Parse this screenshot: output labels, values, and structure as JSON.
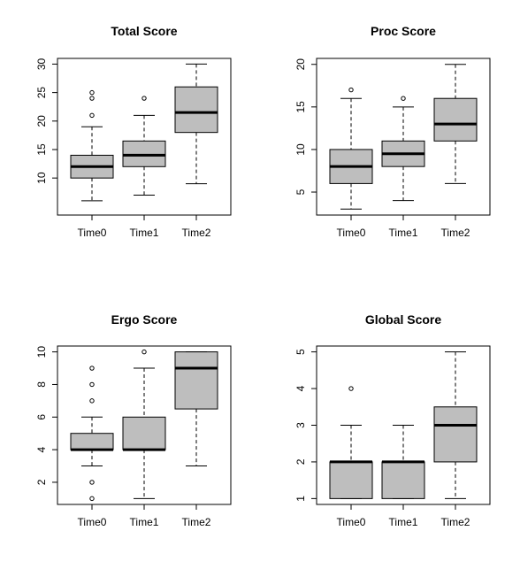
{
  "chart_data": [
    {
      "type": "boxplot",
      "title": "Total Score",
      "categories": [
        "Time0",
        "Time1",
        "Time2"
      ],
      "ylim": [
        3.5,
        31
      ],
      "yticks": [
        10,
        15,
        20,
        25,
        30
      ],
      "box_color": "#bebebe",
      "boxes": [
        {
          "name": "Time0",
          "min": 6,
          "q1": 10,
          "median": 12,
          "q3": 14,
          "max": 19,
          "outliers": [
            21,
            24,
            25
          ]
        },
        {
          "name": "Time1",
          "min": 7,
          "q1": 12,
          "median": 14,
          "q3": 16.5,
          "max": 21,
          "outliers": [
            24
          ]
        },
        {
          "name": "Time2",
          "min": 9,
          "q1": 18,
          "median": 21.5,
          "q3": 26,
          "max": 30,
          "outliers": []
        }
      ]
    },
    {
      "type": "boxplot",
      "title": "Proc Score",
      "categories": [
        "Time0",
        "Time1",
        "Time2"
      ],
      "ylim": [
        2.3,
        20.7
      ],
      "yticks": [
        5,
        10,
        15,
        20
      ],
      "box_color": "#bebebe",
      "boxes": [
        {
          "name": "Time0",
          "min": 3,
          "q1": 6,
          "median": 8,
          "q3": 10,
          "max": 16,
          "outliers": [
            17
          ]
        },
        {
          "name": "Time1",
          "min": 4,
          "q1": 8,
          "median": 9.5,
          "q3": 11,
          "max": 15,
          "outliers": [
            16
          ]
        },
        {
          "name": "Time2",
          "min": 6,
          "q1": 11,
          "median": 13,
          "q3": 16,
          "max": 20,
          "outliers": []
        }
      ]
    },
    {
      "type": "boxplot",
      "title": "Ergo Score",
      "categories": [
        "Time0",
        "Time1",
        "Time2"
      ],
      "ylim": [
        0.64,
        10.36
      ],
      "yticks": [
        2,
        4,
        6,
        8,
        10
      ],
      "box_color": "#bebebe",
      "boxes": [
        {
          "name": "Time0",
          "min": 3,
          "q1": 4,
          "median": 4,
          "q3": 5,
          "max": 6,
          "outliers": [
            1,
            2,
            7,
            8,
            9
          ]
        },
        {
          "name": "Time1",
          "min": 1,
          "q1": 4,
          "median": 4,
          "q3": 6,
          "max": 9,
          "outliers": [
            10
          ]
        },
        {
          "name": "Time2",
          "min": 3,
          "q1": 6.5,
          "median": 9,
          "q3": 10,
          "max": 10,
          "outliers": []
        }
      ]
    },
    {
      "type": "boxplot",
      "title": "Global Score",
      "categories": [
        "Time0",
        "Time1",
        "Time2"
      ],
      "ylim": [
        0.84,
        5.16
      ],
      "yticks": [
        1,
        2,
        3,
        4,
        5
      ],
      "box_color": "#bebebe",
      "boxes": [
        {
          "name": "Time0",
          "min": 1,
          "q1": 1,
          "median": 2,
          "q3": 2,
          "max": 3,
          "outliers": [
            4
          ]
        },
        {
          "name": "Time1",
          "min": 1,
          "q1": 1,
          "median": 2,
          "q3": 2,
          "max": 3,
          "outliers": []
        },
        {
          "name": "Time2",
          "min": 1,
          "q1": 2,
          "median": 3,
          "q3": 3.5,
          "max": 5,
          "outliers": []
        }
      ]
    }
  ]
}
